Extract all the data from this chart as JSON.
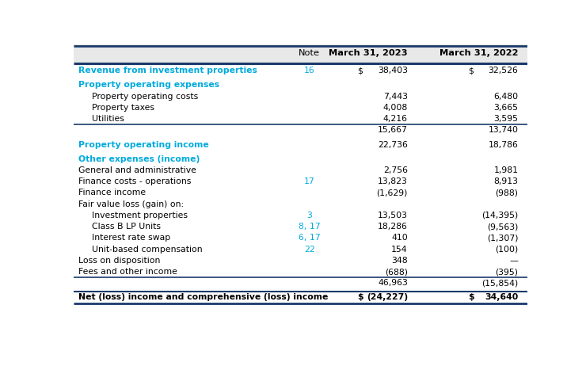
{
  "columns": [
    "",
    "Note",
    "March 31, 2023",
    "March 31, 2022"
  ],
  "header_bg": "#e8e8e8",
  "dark_blue": "#1a3a6b",
  "cyan": "#00aadd",
  "note_color": "#00aadd",
  "rows": [
    {
      "label": "Revenue from investment properties",
      "note": "16",
      "val2023": "38,403",
      "val2022": "32,526",
      "label_color": "cyan",
      "label_weight": "bold",
      "val_weight": "normal",
      "dollar2023": true,
      "dollar2022": true,
      "indent": 0,
      "top_border": false,
      "bottom_border": false,
      "spacer_before": true
    },
    {
      "label": "Property operating expenses",
      "note": "",
      "val2023": "",
      "val2022": "",
      "label_color": "cyan",
      "label_weight": "bold",
      "val_weight": "normal",
      "indent": 0,
      "spacer_before": true
    },
    {
      "label": "Property operating costs",
      "note": "",
      "val2023": "7,443",
      "val2022": "6,480",
      "label_color": "black",
      "label_weight": "normal",
      "val_weight": "normal",
      "indent": 1
    },
    {
      "label": "Property taxes",
      "note": "",
      "val2023": "4,008",
      "val2022": "3,665",
      "label_color": "black",
      "label_weight": "normal",
      "val_weight": "normal",
      "indent": 1
    },
    {
      "label": "Utilities",
      "note": "",
      "val2023": "4,216",
      "val2022": "3,595",
      "label_color": "black",
      "label_weight": "normal",
      "val_weight": "normal",
      "indent": 1,
      "bottom_border": true
    },
    {
      "label": "",
      "note": "",
      "val2023": "15,667",
      "val2022": "13,740",
      "label_color": "black",
      "label_weight": "normal",
      "val_weight": "normal",
      "indent": 0
    },
    {
      "label": "Property operating income",
      "note": "",
      "val2023": "22,736",
      "val2022": "18,786",
      "label_color": "cyan",
      "label_weight": "bold",
      "val_weight": "normal",
      "indent": 0,
      "spacer_before": true
    },
    {
      "label": "Other expenses (income)",
      "note": "",
      "val2023": "",
      "val2022": "",
      "label_color": "cyan",
      "label_weight": "bold",
      "val_weight": "normal",
      "indent": 0,
      "spacer_before": true
    },
    {
      "label": "General and administrative",
      "note": "",
      "val2023": "2,756",
      "val2022": "1,981",
      "label_color": "black",
      "label_weight": "normal",
      "val_weight": "normal",
      "indent": 0
    },
    {
      "label": "Finance costs - operations",
      "note": "17",
      "val2023": "13,823",
      "val2022": "8,913",
      "label_color": "black",
      "label_weight": "normal",
      "val_weight": "normal",
      "indent": 0
    },
    {
      "label": "Finance income",
      "note": "",
      "val2023": "(1,629)",
      "val2022": "(988)",
      "label_color": "black",
      "label_weight": "normal",
      "val_weight": "normal",
      "indent": 0
    },
    {
      "label": "Fair value loss (gain) on:",
      "note": "",
      "val2023": "",
      "val2022": "",
      "label_color": "black",
      "label_weight": "normal",
      "val_weight": "normal",
      "indent": 0
    },
    {
      "label": "Investment properties",
      "note": "3",
      "val2023": "13,503",
      "val2022": "(14,395)",
      "label_color": "black",
      "label_weight": "normal",
      "val_weight": "normal",
      "indent": 1
    },
    {
      "label": "Class B LP Units",
      "note": "8, 17",
      "val2023": "18,286",
      "val2022": "(9,563)",
      "label_color": "black",
      "label_weight": "normal",
      "val_weight": "normal",
      "indent": 1
    },
    {
      "label": "Interest rate swap",
      "note": "6, 17",
      "val2023": "410",
      "val2022": "(1,307)",
      "label_color": "black",
      "label_weight": "normal",
      "val_weight": "normal",
      "indent": 1
    },
    {
      "label": "Unit-based compensation",
      "note": "22",
      "val2023": "154",
      "val2022": "(100)",
      "label_color": "black",
      "label_weight": "normal",
      "val_weight": "normal",
      "indent": 1
    },
    {
      "label": "Loss on disposition",
      "note": "",
      "val2023": "348",
      "val2022": "—",
      "label_color": "black",
      "label_weight": "normal",
      "val_weight": "normal",
      "indent": 0
    },
    {
      "label": "Fees and other income",
      "note": "",
      "val2023": "(688)",
      "val2022": "(395)",
      "label_color": "black",
      "label_weight": "normal",
      "val_weight": "normal",
      "indent": 0,
      "bottom_border": true
    },
    {
      "label": "",
      "note": "",
      "val2023": "46,963",
      "val2022": "(15,854)",
      "label_color": "black",
      "label_weight": "normal",
      "val_weight": "normal",
      "indent": 0
    },
    {
      "label": "Net (loss) income and comprehensive (loss) income",
      "note": "",
      "val2023": "(24,227)",
      "val2022": "34,640",
      "label_color": "black",
      "label_weight": "bold",
      "val_weight": "bold",
      "dollar2023": true,
      "dollar2022": true,
      "indent": 0,
      "top_border": true,
      "spacer_before": true
    }
  ]
}
